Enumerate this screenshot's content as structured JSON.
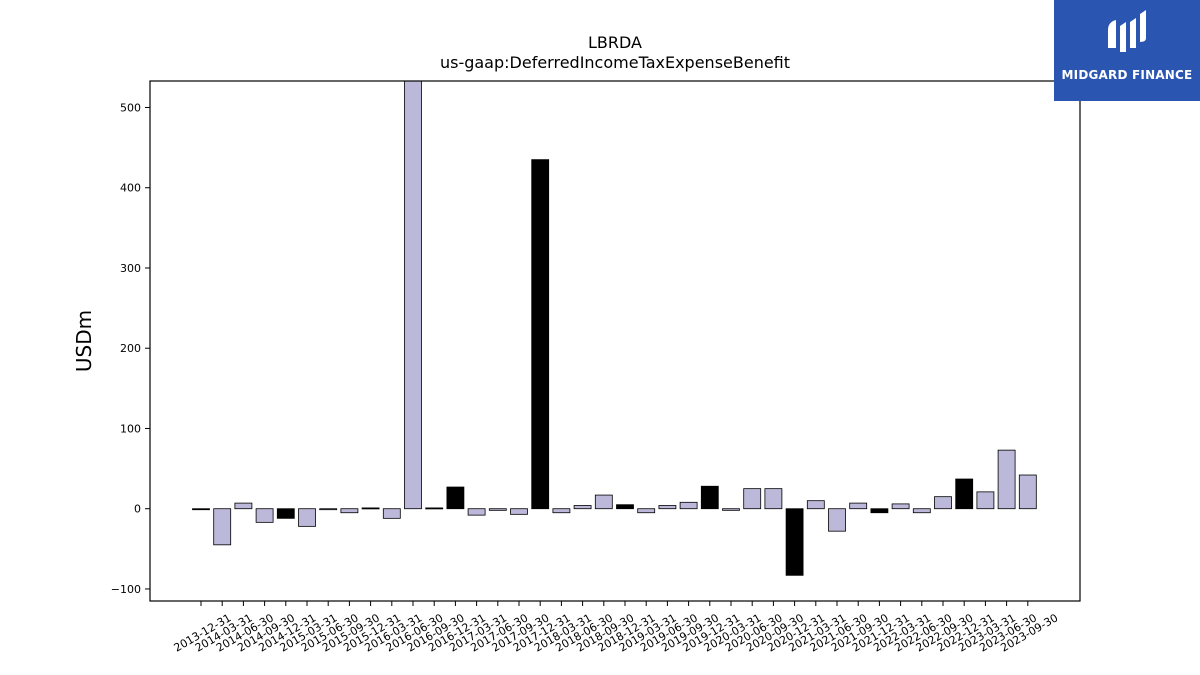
{
  "brand": {
    "name": "MIDGARD FINANCE",
    "bg_color": "#2a55b0"
  },
  "chart_data": {
    "type": "bar",
    "title": "LBRDA",
    "subtitle": "us-gaap:DeferredIncomeTaxExpenseBenefit",
    "xlabel": "",
    "ylabel": "USDm",
    "ylim": [
      -115,
      533
    ],
    "yticks": [
      -100,
      0,
      100,
      200,
      300,
      400,
      500
    ],
    "grid": false,
    "colors": {
      "quarter": "#bcb8da",
      "year_end": "#000000",
      "edge": "#000000"
    },
    "categories": [
      "2013-12-31",
      "2014-03-31",
      "2014-06-30",
      "2014-09-30",
      "2014-12-31",
      "2015-03-31",
      "2015-06-30",
      "2015-09-30",
      "2015-12-31",
      "2016-03-31",
      "2016-06-30",
      "2016-09-30",
      "2016-12-31",
      "2017-03-31",
      "2017-06-30",
      "2017-09-30",
      "2017-12-31",
      "2018-03-31",
      "2018-06-30",
      "2018-09-30",
      "2018-12-31",
      "2019-03-31",
      "2019-06-30",
      "2019-09-30",
      "2019-12-31",
      "2020-03-31",
      "2020-06-30",
      "2020-09-30",
      "2020-12-31",
      "2021-03-31",
      "2021-06-30",
      "2021-09-30",
      "2021-12-31",
      "2022-03-31",
      "2022-06-30",
      "2022-09-30",
      "2022-12-31",
      "2023-03-31",
      "2023-06-30",
      "2023-09-30"
    ],
    "values": [
      -1,
      -45,
      7,
      -17,
      -12,
      -22,
      0,
      -5,
      1,
      -12,
      540,
      1,
      27,
      -8,
      -2,
      -7,
      435,
      -5,
      4,
      17,
      5,
      -5,
      4,
      8,
      28,
      -2,
      25,
      25,
      -83,
      10,
      -28,
      7,
      -5,
      6,
      -5,
      15,
      37,
      21,
      73,
      42
    ]
  }
}
